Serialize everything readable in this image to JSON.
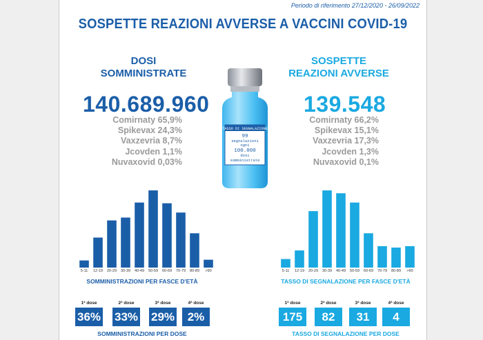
{
  "period": "Periodo di riferimento 27/12/2020 - 26/09/2022",
  "title": "SOSPETTE REAZIONI AVVERSE A VACCINI COVID-19",
  "colors": {
    "dark_blue": "#1b5ea8",
    "light_blue": "#1aa9e1",
    "grey_text": "#9a9a9a"
  },
  "left": {
    "heading_line1": "DOSI",
    "heading_line2": "SOMMINISTRATE",
    "total": "140.689.960",
    "vaccines": [
      "Comirnaty 65,9%",
      "Spikevax 24,3%",
      "Vaxzevria 8,7%",
      "Jcovden 1,1%",
      "Nuvaxovid 0,03%"
    ]
  },
  "right": {
    "heading_line1": "SOSPETTE",
    "heading_line2": "REAZIONI AVVERSE",
    "total": "139.548",
    "vaccines": [
      "Comirnaty 66,2%",
      "Spikevax 15,1%",
      "Vaxzevria 17,3%",
      "Jcovden 1,3%",
      "Nuvaxovid 0,1%"
    ]
  },
  "vial": {
    "label_title": "TASSO DI SEGNALAZIONE",
    "label_value": "99",
    "label_line1": "segnalazioni",
    "label_line2": "ogni",
    "label_line3": "100.000",
    "label_line4": "dosi",
    "label_line5": "somministrate"
  },
  "chart_data": [
    {
      "type": "bar",
      "title": "SOMMINISTRAZIONI PER FASCE D'ETÀ",
      "categories": [
        "5-11",
        "12-19",
        "20-29",
        "30-39",
        "40-49",
        "50-59",
        "60-69",
        "70-79",
        "80-89",
        ">90"
      ],
      "values": [
        10,
        42,
        66,
        70,
        91,
        108,
        90,
        77,
        48,
        11
      ]
    },
    {
      "type": "bar",
      "title": "TASSO DI SEGNALAZIONE PER FASCE D'ETÀ",
      "categories": [
        "5-11",
        "12-19",
        "20-29",
        "30-39",
        "40-49",
        "50-59",
        "60-69",
        "70-79",
        "80-89",
        ">90"
      ],
      "values": [
        12,
        24,
        79,
        108,
        104,
        91,
        48,
        30,
        28,
        30
      ]
    }
  ],
  "doses_left": {
    "labels": [
      "1ª dose",
      "2ª dose",
      "3ª dose",
      "4ª dose"
    ],
    "values": [
      "36%",
      "33%",
      "29%",
      "2%"
    ],
    "caption": "SOMMINISTRAZIONI PER DOSE"
  },
  "doses_right": {
    "labels": [
      "1ª dose",
      "2ª dose",
      "3ª dose",
      "4ª dose"
    ],
    "values": [
      "175",
      "82",
      "31",
      "4"
    ],
    "caption": "TASSO DI SEGNALAZIONE PER DOSE"
  }
}
